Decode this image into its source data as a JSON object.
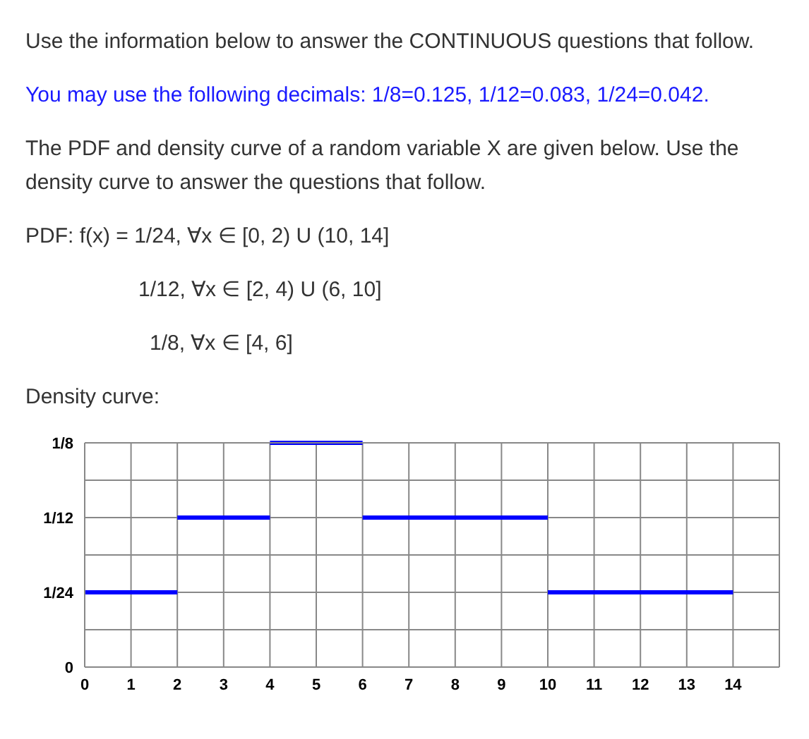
{
  "chart_data": {
    "type": "line",
    "title": "Use the information below to answer the CONTINUOUS questions that follow.",
    "subtitle": "You may use the following decimals: 1/8=0.125, 1/12=0.083, 1/24=0.042.",
    "annotations": [
      "The PDF and density curve of a random variable X are given below.  Use the density curve to answer the questions that follow.",
      "PDF: f(x) = 1/24, ∀x ∈ [0, 2) U (10, 14]",
      "1/12, ∀x ∈ [2, 4) U (6, 10]",
      "1/8, ∀x ∈ [4, 6]",
      "Density curve:"
    ],
    "series": [
      {
        "color": "#0000ff",
        "x": [
          0,
          2
        ],
        "values": [
          0.0417,
          0.0417
        ]
      },
      {
        "color": "#0000ff",
        "x": [
          2,
          4
        ],
        "values": [
          0.0833,
          0.0833
        ]
      },
      {
        "color": "#0000ff",
        "x": [
          4,
          6
        ],
        "values": [
          0.125,
          0.125
        ]
      },
      {
        "color": "#0000ff",
        "x": [
          6,
          10
        ],
        "values": [
          0.0833,
          0.0833
        ]
      },
      {
        "color": "#0000ff",
        "x": [
          10,
          14
        ],
        "values": [
          0.0417,
          0.0417
        ]
      }
    ],
    "xlim": [
      0,
      15
    ],
    "xticks": [
      0,
      1,
      2,
      3,
      4,
      5,
      6,
      7,
      8,
      9,
      10,
      11,
      12,
      13,
      14
    ],
    "ylim": [
      0,
      0.125
    ],
    "yticks": [
      {
        "value": 0,
        "label": "0"
      },
      {
        "value": 0.0208,
        "label": null
      },
      {
        "value": 0.0417,
        "label": "1/24"
      },
      {
        "value": 0.0625,
        "label": null
      },
      {
        "value": 0.0833,
        "label": "1/12"
      },
      {
        "value": 0.1042,
        "label": null
      },
      {
        "value": 0.125,
        "label": "1/8"
      }
    ],
    "grid": true,
    "marker": "none",
    "line_style": "solid"
  }
}
